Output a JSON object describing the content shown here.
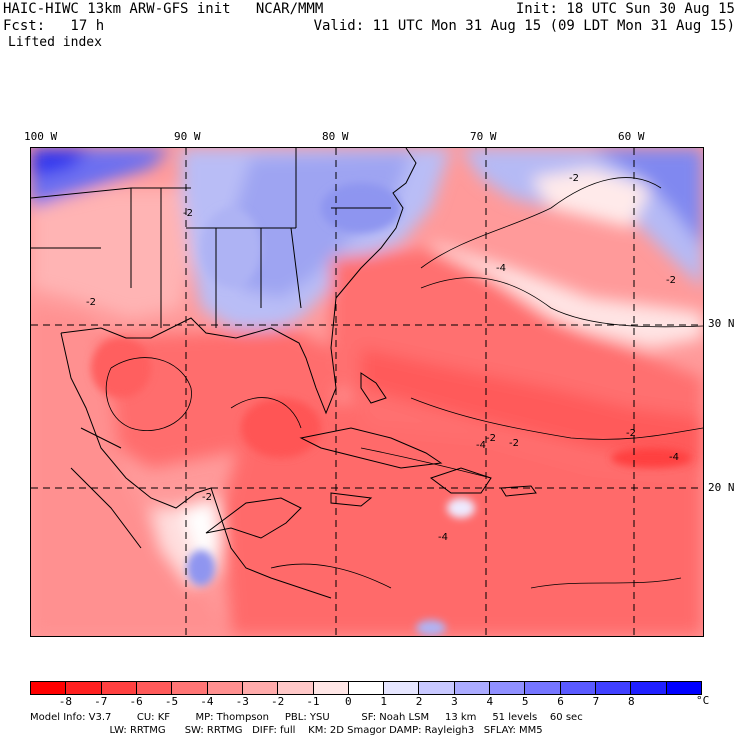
{
  "header": {
    "model_title": "HAIC-HIWC 13km ARW-GFS init   NCAR/MMM",
    "init_time": "Init: 18 UTC Sun 30 Aug 15",
    "forecast_hour": "Fcst:   17 h",
    "valid_time": "Valid: 11 UTC Mon 31 Aug 15 (09 LDT Mon 31 Aug 15)",
    "field_name": "Lifted index"
  },
  "map": {
    "longitude_labels": [
      "100 W",
      "90 W",
      "80 W",
      "70 W",
      "60 W"
    ],
    "latitude_labels": [
      "30 N",
      "20 N"
    ],
    "contour_labels": [
      "-2",
      "-4",
      "-2",
      "-2",
      "-4",
      "-2",
      "-4",
      "-2",
      "-4",
      "-2",
      "-2",
      "-2"
    ]
  },
  "colorbar": {
    "colors": [
      "#ff0000",
      "#ff2020",
      "#ff4040",
      "#ff5a5a",
      "#ff7575",
      "#ff9090",
      "#ffabab",
      "#ffc8c8",
      "#ffe6e6",
      "#ffffff",
      "#e6e6ff",
      "#c8c8ff",
      "#ababff",
      "#9090ff",
      "#7575ff",
      "#5a5aff",
      "#4040ff",
      "#2020ff",
      "#0000ff"
    ],
    "ticks": [
      "-8",
      "-7",
      "-6",
      "-5",
      "-4",
      "-3",
      "-2",
      "-1",
      "0",
      "1",
      "2",
      "3",
      "4",
      "5",
      "6",
      "7",
      "8"
    ],
    "unit": "°C"
  },
  "model_info": {
    "line1": "Model Info: V3.7        CU: KF        MP: Thompson     PBL: YSU          SF: Noah LSM     13 km     51 levels    60 sec",
    "line2": "                         LW: RRTMG      SW: RRTMG   DIFF: full    KM: 2D Smagor DAMP: Rayleigh3   SFLAY: MM5"
  }
}
